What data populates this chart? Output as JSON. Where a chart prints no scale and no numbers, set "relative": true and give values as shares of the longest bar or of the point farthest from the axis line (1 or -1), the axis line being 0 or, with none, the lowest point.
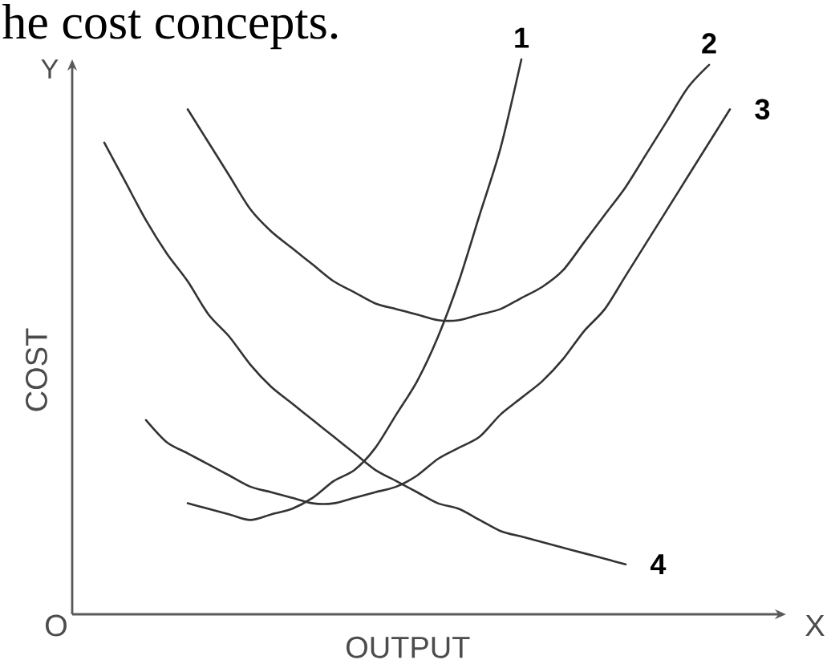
{
  "chart_data": {
    "type": "line",
    "relative": true,
    "xlabel": "OUTPUT",
    "ylabel": "COST",
    "categories": [
      null,
      null,
      null,
      null,
      null,
      null,
      null,
      null,
      null,
      null,
      null,
      null,
      null,
      null,
      null,
      null,
      null,
      null,
      null,
      null,
      null,
      null,
      null,
      null,
      null,
      null,
      null,
      null,
      null,
      null,
      null
    ],
    "series": [
      {
        "name": "1",
        "color": "#333333",
        "values": [
          null,
          null,
          null,
          null,
          0.2,
          0.19,
          0.18,
          0.17,
          0.18,
          0.19,
          0.21,
          0.24,
          0.26,
          0.3,
          0.36,
          0.42,
          0.5,
          0.6,
          0.72,
          0.84,
          1.0,
          null,
          null,
          null,
          null,
          null,
          null,
          null,
          null,
          null,
          null
        ]
      },
      {
        "name": "2",
        "color": "#333333",
        "values": [
          null,
          null,
          null,
          null,
          0.91,
          0.85,
          0.79,
          0.73,
          0.69,
          0.66,
          0.63,
          0.6,
          0.58,
          0.56,
          0.55,
          0.54,
          0.53,
          0.53,
          0.54,
          0.55,
          0.57,
          0.59,
          0.62,
          0.67,
          0.72,
          0.77,
          0.83,
          0.89,
          0.95,
          0.99,
          null
        ]
      },
      {
        "name": "3",
        "color": "#333333",
        "values": [
          null,
          null,
          0.35,
          0.31,
          0.29,
          0.27,
          0.25,
          0.23,
          0.22,
          0.21,
          0.2,
          0.2,
          0.21,
          0.22,
          0.23,
          0.25,
          0.28,
          0.3,
          0.32,
          0.36,
          0.39,
          0.42,
          0.46,
          0.51,
          0.55,
          0.61,
          0.67,
          0.73,
          0.79,
          0.85,
          0.91
        ]
      },
      {
        "name": "4",
        "color": "#333333",
        "values": [
          0.85,
          0.78,
          0.71,
          0.65,
          0.6,
          0.54,
          0.5,
          0.45,
          0.41,
          0.38,
          0.35,
          0.32,
          0.29,
          0.26,
          0.24,
          0.22,
          0.2,
          0.19,
          0.17,
          0.15,
          0.14,
          0.13,
          0.12,
          0.11,
          0.1,
          0.09,
          null,
          null,
          null,
          null,
          null
        ]
      }
    ],
    "annotations": [
      "he cost concepts.",
      "O",
      "X",
      "Y"
    ]
  }
}
